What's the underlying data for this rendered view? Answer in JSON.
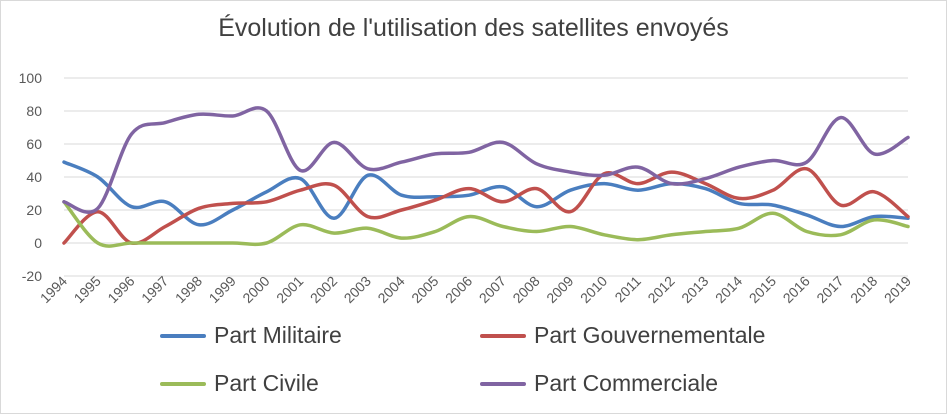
{
  "chart_data": {
    "type": "line",
    "title": "Évolution de l'utilisation des satellites envoyés",
    "xlabel": "",
    "ylabel": "",
    "ylim": [
      -20,
      100
    ],
    "yticks": [
      "100",
      "80",
      "60",
      "40",
      "20",
      "0",
      "-20"
    ],
    "grid": true,
    "legend_position": "bottom",
    "categories": [
      "1994",
      "1995",
      "1996",
      "1997",
      "1998",
      "1999",
      "2000",
      "2001",
      "2002",
      "2003",
      "2004",
      "2005",
      "2006",
      "2007",
      "2008",
      "2009",
      "2010",
      "2011",
      "2012",
      "2013",
      "2014",
      "2015",
      "2016",
      "2017",
      "2018",
      "2019"
    ],
    "series": [
      {
        "name": "Part Militaire",
        "color": "#4a7ebf",
        "values": [
          49,
          40,
          22,
          25,
          11,
          20,
          31,
          39,
          15,
          41,
          29,
          28,
          29,
          34,
          22,
          32,
          36,
          32,
          36,
          33,
          24,
          23,
          17,
          10,
          16,
          15
        ]
      },
      {
        "name": "Part Gouvernementale",
        "color": "#c0504d",
        "values": [
          0,
          19,
          0,
          10,
          21,
          24,
          25,
          32,
          35,
          16,
          20,
          26,
          33,
          25,
          33,
          19,
          42,
          36,
          43,
          36,
          27,
          32,
          45,
          23,
          31,
          16
        ]
      },
      {
        "name": "Part Civile",
        "color": "#9bbb59",
        "values": [
          25,
          0,
          0,
          0,
          0,
          0,
          0,
          11,
          6,
          9,
          3,
          7,
          16,
          10,
          7,
          10,
          5,
          2,
          5,
          7,
          9,
          18,
          7,
          5,
          14,
          10
        ]
      },
      {
        "name": "Part Commerciale",
        "color": "#8064a2",
        "values": [
          25,
          21,
          66,
          73,
          78,
          77,
          80,
          44,
          61,
          45,
          49,
          54,
          55,
          61,
          48,
          43,
          41,
          46,
          36,
          39,
          46,
          50,
          49,
          76,
          54,
          64
        ]
      }
    ]
  }
}
